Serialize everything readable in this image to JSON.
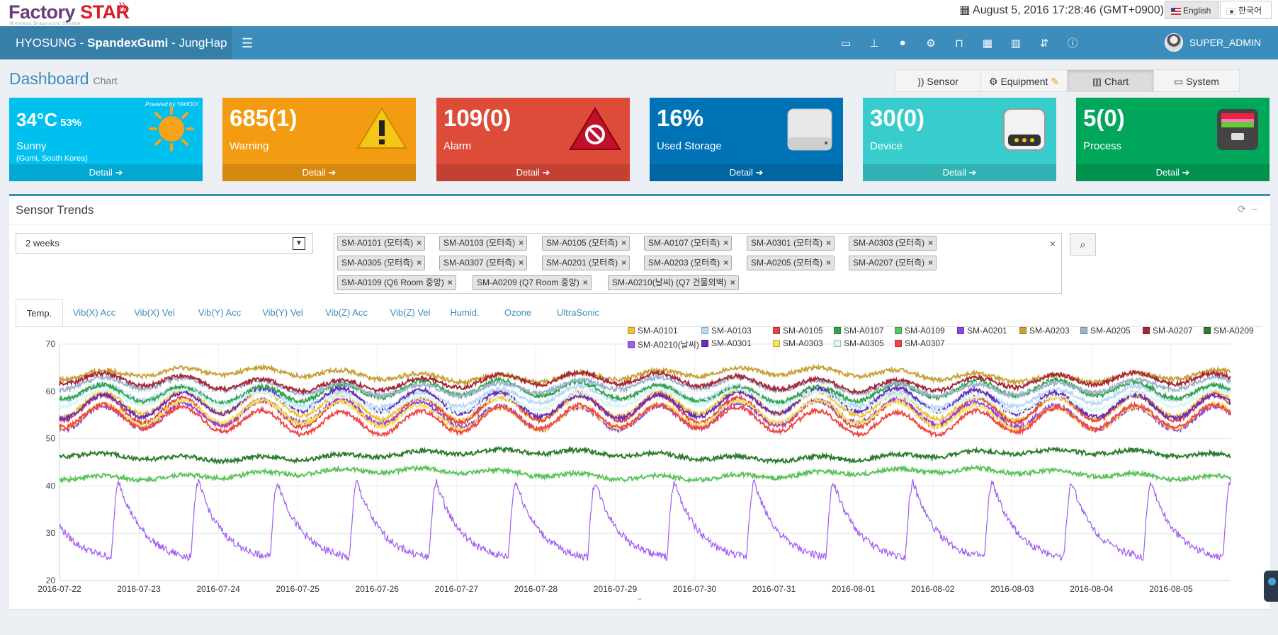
{
  "app": {
    "logo_main": "Factory",
    "logo_star": "STAR",
    "logo_tag": "Wireless Diagnostic System",
    "datetime": "August 5, 2016 17:28:46 (GMT+0900)",
    "lang_en": "English",
    "lang_ko": "한국어"
  },
  "nav": {
    "brand_pre": "HYOSUNG - ",
    "brand_bold": "SpandexGumi",
    "brand_post": " - JungHap",
    "icons": [
      "monitor-icon",
      "sitemap-icon",
      "user-icon",
      "cogs-icon",
      "inbox-icon",
      "grid-icon",
      "bar-chart-icon",
      "sort-icon",
      "info-icon"
    ],
    "user": "SUPER_ADMIN"
  },
  "page": {
    "title": "Dashboard",
    "subtitle": "Chart"
  },
  "modes": [
    {
      "label": "Sensor",
      "icon": "rss-icon"
    },
    {
      "label": "Equipment",
      "icon": "gear-icon"
    },
    {
      "label": "Chart",
      "icon": "bar-chart-icon"
    },
    {
      "label": "System",
      "icon": "laptop-icon"
    }
  ],
  "stats": {
    "weather": {
      "temp": "34°C",
      "humidity": "53%",
      "cond": "Sunny",
      "loc": "(Gumi, South Korea)",
      "powered": "Powered by YAHOO!",
      "detail": "Detail",
      "color": "#00c0ef"
    },
    "warning": {
      "value": "685(1)",
      "label": "Warning",
      "detail": "Detail",
      "color": "#f39c12"
    },
    "alarm": {
      "value": "109(0)",
      "label": "Alarm",
      "detail": "Detail",
      "color": "#dd4b39"
    },
    "storage": {
      "value": "16%",
      "label": "Used Storage",
      "detail": "Detail",
      "color": "#0073b7"
    },
    "device": {
      "value": "30(0)",
      "label": "Device",
      "detail": "Detail",
      "color": "#39cccc"
    },
    "process": {
      "value": "5(0)",
      "label": "Process",
      "detail": "Detail",
      "color": "#00a65a"
    }
  },
  "panel": {
    "title": "Sensor Trends",
    "period": "2 weeks",
    "sensors": [
      "SM-A0101 (모터측)",
      "SM-A0103 (모터측)",
      "SM-A0105 (모터측)",
      "SM-A0107 (모터측)",
      "SM-A0301 (모터측)",
      "SM-A0303 (모터측)",
      "SM-A0305 (모터측)",
      "SM-A0307 (모터측)",
      "SM-A0201 (모터측)",
      "SM-A0203 (모터측)",
      "SM-A0205 (모터측)",
      "SM-A0207 (모터측)",
      "SM-A0109 (Q6 Room 중앙)",
      "SM-A0209 (Q7 Room 중앙)",
      "SM-A0210(날씨) (Q7 건물외벽)"
    ],
    "tabs": [
      "Temp.",
      "Vib(X) Acc",
      "Vib(X) Vel",
      "Vib(Y) Acc",
      "Vib(Y) Vel",
      "Vib(Z) Acc",
      "Vib(Z) Vel",
      "Humid.",
      "Ozone",
      "UltraSonic"
    ],
    "active_tab": "Temp."
  },
  "chart_data": {
    "type": "line",
    "ylim": [
      20,
      70
    ],
    "yticks": [
      20,
      30,
      40,
      50,
      60,
      70
    ],
    "x_labels": [
      "2016-07-22",
      "2016-07-23",
      "2016-07-24",
      "2016-07-25",
      "2016-07-26",
      "2016-07-27",
      "2016-07-28",
      "2016-07-29",
      "2016-07-30",
      "2016-07-31",
      "2016-08-01",
      "2016-08-02",
      "2016-08-03",
      "2016-08-04",
      "2016-08-05"
    ],
    "x_range_days": [
      0,
      14.75
    ],
    "series": [
      {
        "name": "SM-A0101",
        "color": "#f0c23c",
        "base": 57.0,
        "amp": 3.0
      },
      {
        "name": "SM-A0103",
        "color": "#b8d8f8",
        "base": 59.0,
        "amp": 2.0
      },
      {
        "name": "SM-A0105",
        "color": "#e04848",
        "base": 56.0,
        "amp": 3.5
      },
      {
        "name": "SM-A0107",
        "color": "#2fa64a",
        "base": 60.0,
        "amp": 2.0
      },
      {
        "name": "SM-A0109",
        "color": "#5cc45c",
        "base": 42.5,
        "amp": 0.6
      },
      {
        "name": "SM-A0201",
        "color": "#8e44e8",
        "base": 55.0,
        "amp": 3.0
      },
      {
        "name": "SM-A0203",
        "color": "#c8a13a",
        "base": 63.5,
        "amp": 1.0
      },
      {
        "name": "SM-A0205",
        "color": "#9ab4cc",
        "base": 61.0,
        "amp": 1.5
      },
      {
        "name": "SM-A0207",
        "color": "#a8283a",
        "base": 62.0,
        "amp": 1.5
      },
      {
        "name": "SM-A0209",
        "color": "#2e7d2e",
        "base": 46.5,
        "amp": 0.6
      },
      {
        "name": "SM-A0210(날씨)",
        "color": "#a05cf0",
        "base": 32.0,
        "amp": 8.0
      },
      {
        "name": "SM-A0301",
        "color": "#6a2fb8",
        "base": 57.5,
        "amp": 3.0
      },
      {
        "name": "SM-A0303",
        "color": "#f7e25a",
        "base": 55.0,
        "amp": 3.0
      },
      {
        "name": "SM-A0305",
        "color": "#d8f8f4",
        "base": 58.0,
        "amp": 2.0
      },
      {
        "name": "SM-A0307",
        "color": "#f04848",
        "base": 54.0,
        "amp": 3.0
      }
    ]
  }
}
